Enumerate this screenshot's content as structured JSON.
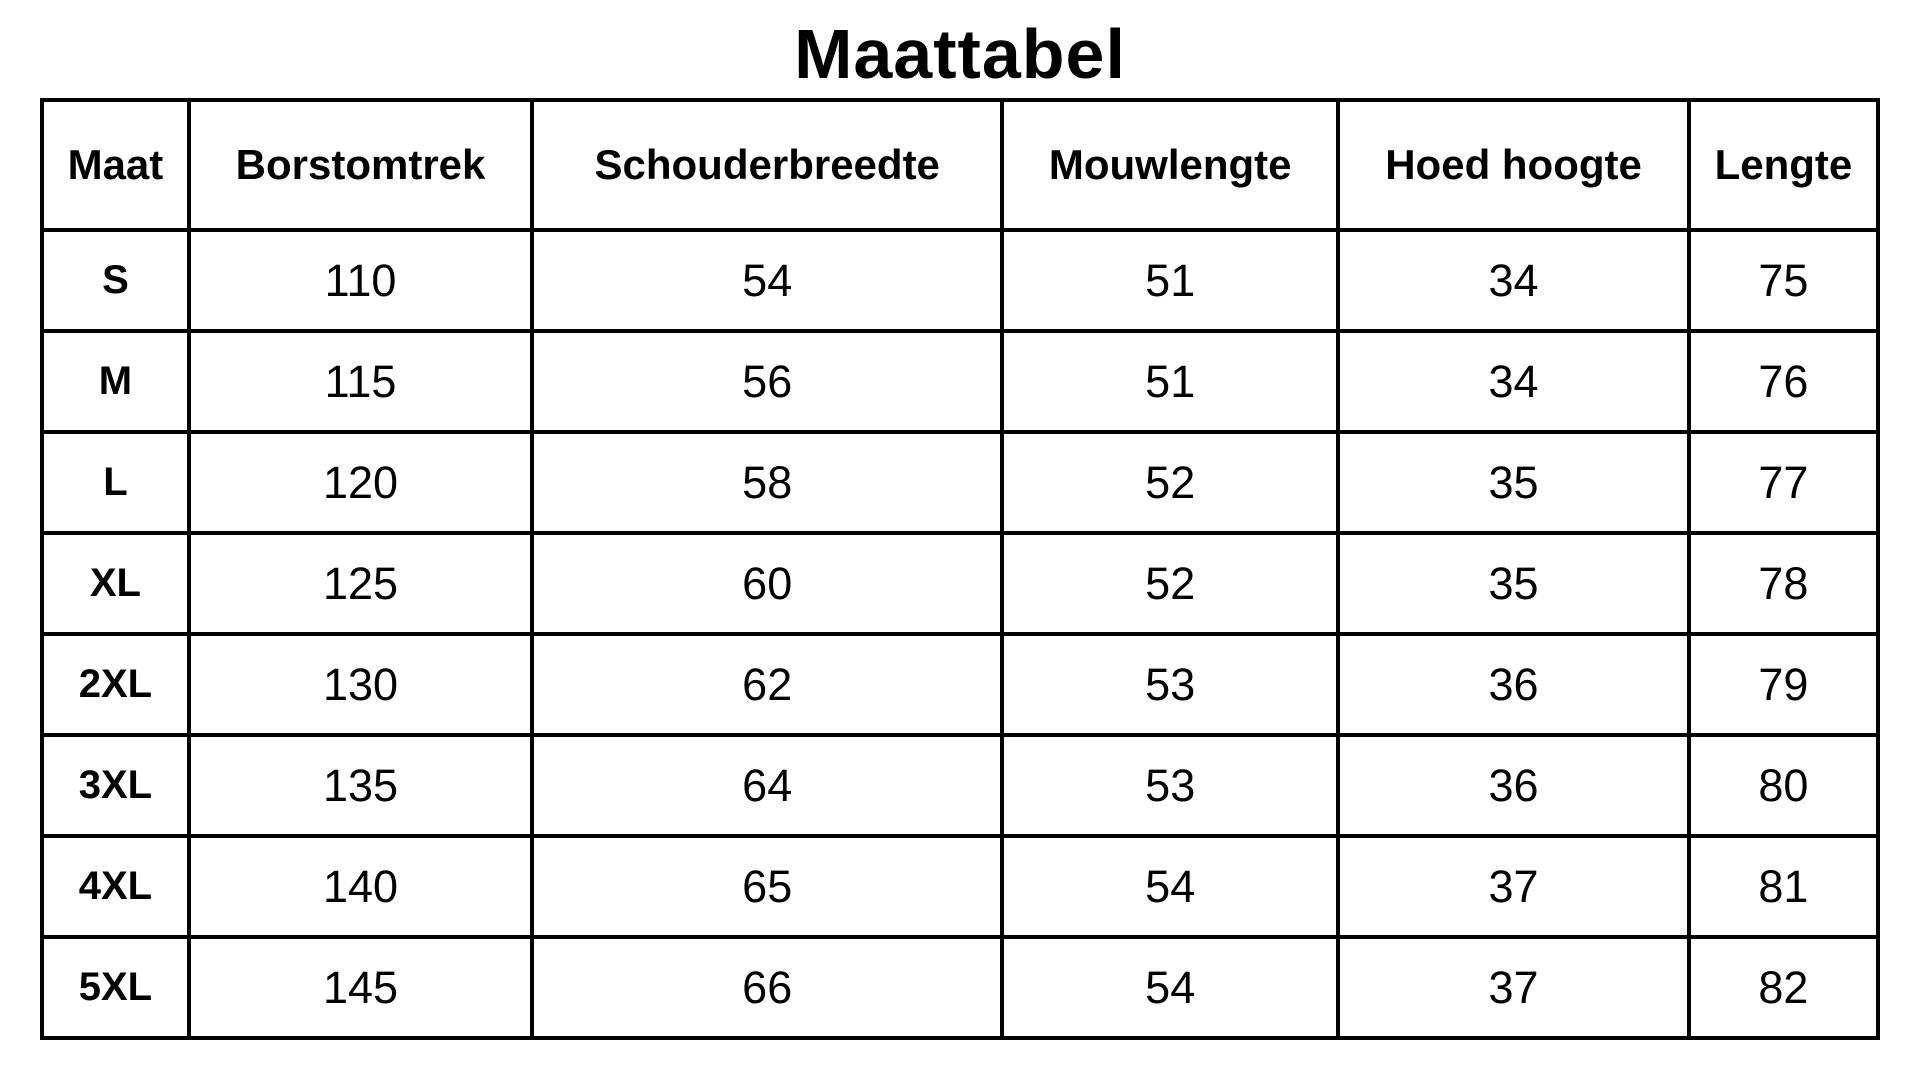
{
  "page_title": "Maattabel",
  "colors": {
    "background": "#ffffff",
    "text": "#000000",
    "border": "#000000"
  },
  "chart_data": {
    "type": "table",
    "title": "Maattabel",
    "columns": [
      "Maat",
      "Borstomtrek",
      "Schouderbreedte",
      "Mouwlengte",
      "Hoed hoogte",
      "Lengte"
    ],
    "rows": [
      {
        "size": "S",
        "values": [
          "110",
          "54",
          "51",
          "34",
          "75"
        ]
      },
      {
        "size": "M",
        "values": [
          "115",
          "56",
          "51",
          "34",
          "76"
        ]
      },
      {
        "size": "L",
        "values": [
          "120",
          "58",
          "52",
          "35",
          "77"
        ]
      },
      {
        "size": "XL",
        "values": [
          "125",
          "60",
          "52",
          "35",
          "78"
        ]
      },
      {
        "size": "2XL",
        "values": [
          "130",
          "62",
          "53",
          "36",
          "79"
        ]
      },
      {
        "size": "3XL",
        "values": [
          "135",
          "64",
          "53",
          "36",
          "80"
        ]
      },
      {
        "size": "4XL",
        "values": [
          "140",
          "65",
          "54",
          "37",
          "81"
        ]
      },
      {
        "size": "5XL",
        "values": [
          "145",
          "66",
          "54",
          "37",
          "82"
        ]
      }
    ]
  }
}
